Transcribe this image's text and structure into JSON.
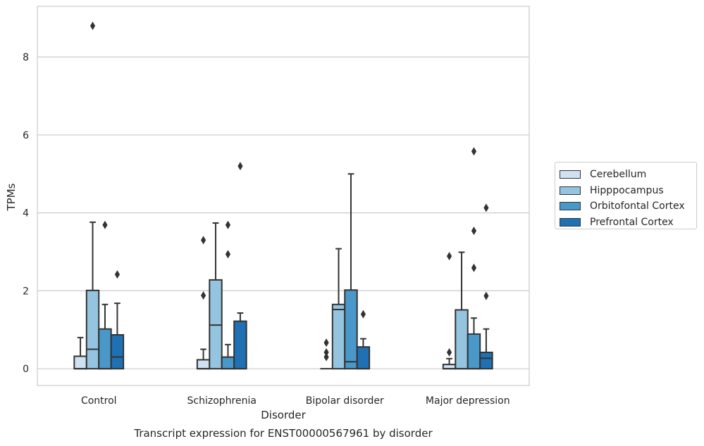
{
  "chart_data": {
    "type": "box",
    "xlabel": "Disorder",
    "ylabel": "TPMs",
    "caption": "Transcript expression for ENST00000567961 by disorder",
    "categories": [
      "Control",
      "Schizophrenia",
      "Bipolar disorder",
      "Major depression"
    ],
    "yticks": [
      "0",
      "2",
      "4",
      "6",
      "8"
    ],
    "ylim": [
      -0.43,
      9.3
    ],
    "grid": "horizontal",
    "legend_position": "right",
    "series": [
      {
        "name": "Cerebellum",
        "color": "#d0e1f2",
        "boxes": [
          {
            "q1": 0,
            "median": 0,
            "q3": 0.32,
            "whislo": 0,
            "whishi": 0.8,
            "fliers": []
          },
          {
            "q1": 0,
            "median": 0,
            "q3": 0.23,
            "whislo": 0,
            "whishi": 0.5,
            "fliers": [
              1.88,
              3.3
            ]
          },
          {
            "q1": 0,
            "median": 0,
            "q3": 0,
            "whislo": 0,
            "whishi": 0,
            "fliers": [
              0.3,
              0.42,
              0.67
            ]
          },
          {
            "q1": 0,
            "median": 0,
            "q3": 0.11,
            "whislo": 0,
            "whishi": 0.26,
            "fliers": [
              0.42,
              2.89
            ]
          }
        ]
      },
      {
        "name": "Hipppocampus",
        "color": "#94c4df",
        "boxes": [
          {
            "q1": 0,
            "median": 0.5,
            "q3": 2.01,
            "whislo": 0,
            "whishi": 3.76,
            "fliers": [
              8.8
            ]
          },
          {
            "q1": 0,
            "median": 1.12,
            "q3": 2.28,
            "whislo": 0,
            "whishi": 3.74,
            "fliers": []
          },
          {
            "q1": 0,
            "median": 1.52,
            "q3": 1.65,
            "whislo": 0,
            "whishi": 3.08,
            "fliers": []
          },
          {
            "q1": 0,
            "median": 0,
            "q3": 1.51,
            "whislo": 0,
            "whishi": 2.99,
            "fliers": []
          }
        ]
      },
      {
        "name": "Orbitofontal Cortex",
        "color": "#4a98c9",
        "boxes": [
          {
            "q1": 0,
            "median": 0,
            "q3": 1.02,
            "whislo": 0,
            "whishi": 1.65,
            "fliers": [
              3.69
            ]
          },
          {
            "q1": 0,
            "median": 0,
            "q3": 0.3,
            "whislo": 0,
            "whishi": 0.62,
            "fliers": [
              2.94,
              3.69
            ]
          },
          {
            "q1": 0,
            "median": 0.18,
            "q3": 2.02,
            "whislo": 0,
            "whishi": 5.0,
            "fliers": []
          },
          {
            "q1": 0,
            "median": 0,
            "q3": 0.89,
            "whislo": 0,
            "whishi": 1.3,
            "fliers": [
              2.59,
              3.54,
              5.58
            ]
          }
        ]
      },
      {
        "name": "Prefrontal Cortex",
        "color": "#2070b4",
        "boxes": [
          {
            "q1": 0,
            "median": 0.3,
            "q3": 0.87,
            "whislo": 0,
            "whishi": 1.68,
            "fliers": [
              2.42
            ]
          },
          {
            "q1": 0,
            "median": 0,
            "q3": 1.22,
            "whislo": 0,
            "whishi": 1.43,
            "fliers": [
              5.2
            ]
          },
          {
            "q1": 0,
            "median": 0,
            "q3": 0.56,
            "whislo": 0,
            "whishi": 0.77,
            "fliers": [
              1.4
            ]
          },
          {
            "q1": 0,
            "median": 0.27,
            "q3": 0.42,
            "whislo": 0,
            "whishi": 1.02,
            "fliers": [
              1.87,
              4.13
            ]
          }
        ]
      }
    ]
  }
}
